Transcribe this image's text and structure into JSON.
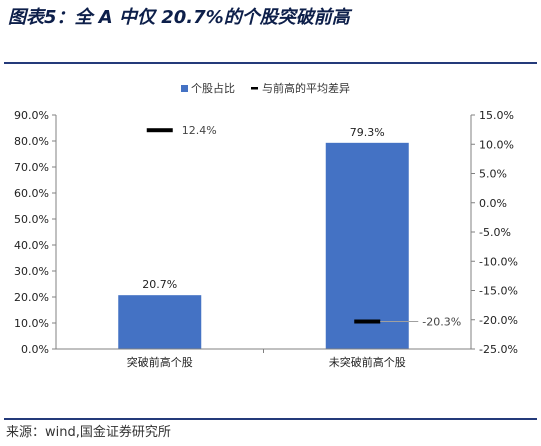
{
  "page": {
    "title": "图表5：全 A 中仅 20.7%的个股突破前高",
    "source": "来源：wind,国金证券研究所"
  },
  "colors": {
    "bar": "#4472c4",
    "marker": "#000000",
    "axis": "#808080",
    "rule": "#243a7a",
    "leader": "#a0a0a0"
  },
  "chart_data": {
    "type": "bar",
    "categories": [
      "突破前高个股",
      "未突破前高个股"
    ],
    "series": [
      {
        "name": "个股占比",
        "type": "bar",
        "axis": "left",
        "values": [
          20.7,
          79.3
        ],
        "labels": [
          "20.7%",
          "79.3%"
        ]
      },
      {
        "name": "与前高的平均差异",
        "type": "marker",
        "axis": "right",
        "values": [
          12.4,
          -20.3
        ],
        "labels": [
          "12.4%",
          "-20.3%"
        ]
      }
    ],
    "y_left": {
      "lim": [
        0,
        90
      ],
      "ticks": [
        0,
        10,
        20,
        30,
        40,
        50,
        60,
        70,
        80,
        90
      ],
      "tick_labels": [
        "0.0%",
        "10.0%",
        "20.0%",
        "30.0%",
        "40.0%",
        "50.0%",
        "60.0%",
        "70.0%",
        "80.0%",
        "90.0%"
      ]
    },
    "y_right": {
      "lim": [
        -25,
        15
      ],
      "ticks": [
        -25,
        -20,
        -15,
        -10,
        -5,
        0,
        5,
        10,
        15
      ],
      "tick_labels": [
        "-25.0%",
        "-20.0%",
        "-15.0%",
        "-10.0%",
        "-5.0%",
        "0.0%",
        "5.0%",
        "10.0%",
        "15.0%"
      ]
    },
    "grid": false,
    "legend": "top-center"
  }
}
